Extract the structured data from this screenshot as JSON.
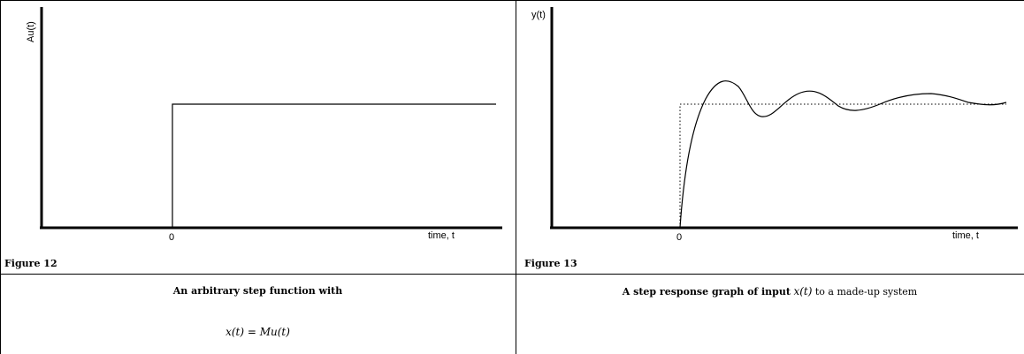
{
  "figure_left": {
    "label": "Figure 12",
    "y_axis_label": "Au(t)",
    "x_axis_label": "time, t",
    "origin_tick": "0",
    "caption_line1": "An arbitrary step function with",
    "caption_math": "x(t) = Mu(t)"
  },
  "figure_right": {
    "label": "Figure 13",
    "y_axis_label": "y(t)",
    "x_axis_label": "time, t",
    "origin_tick": "0",
    "caption_bold": "A step response graph of input",
    "caption_math": "x(t)",
    "caption_rest": "to a made-up system"
  }
}
